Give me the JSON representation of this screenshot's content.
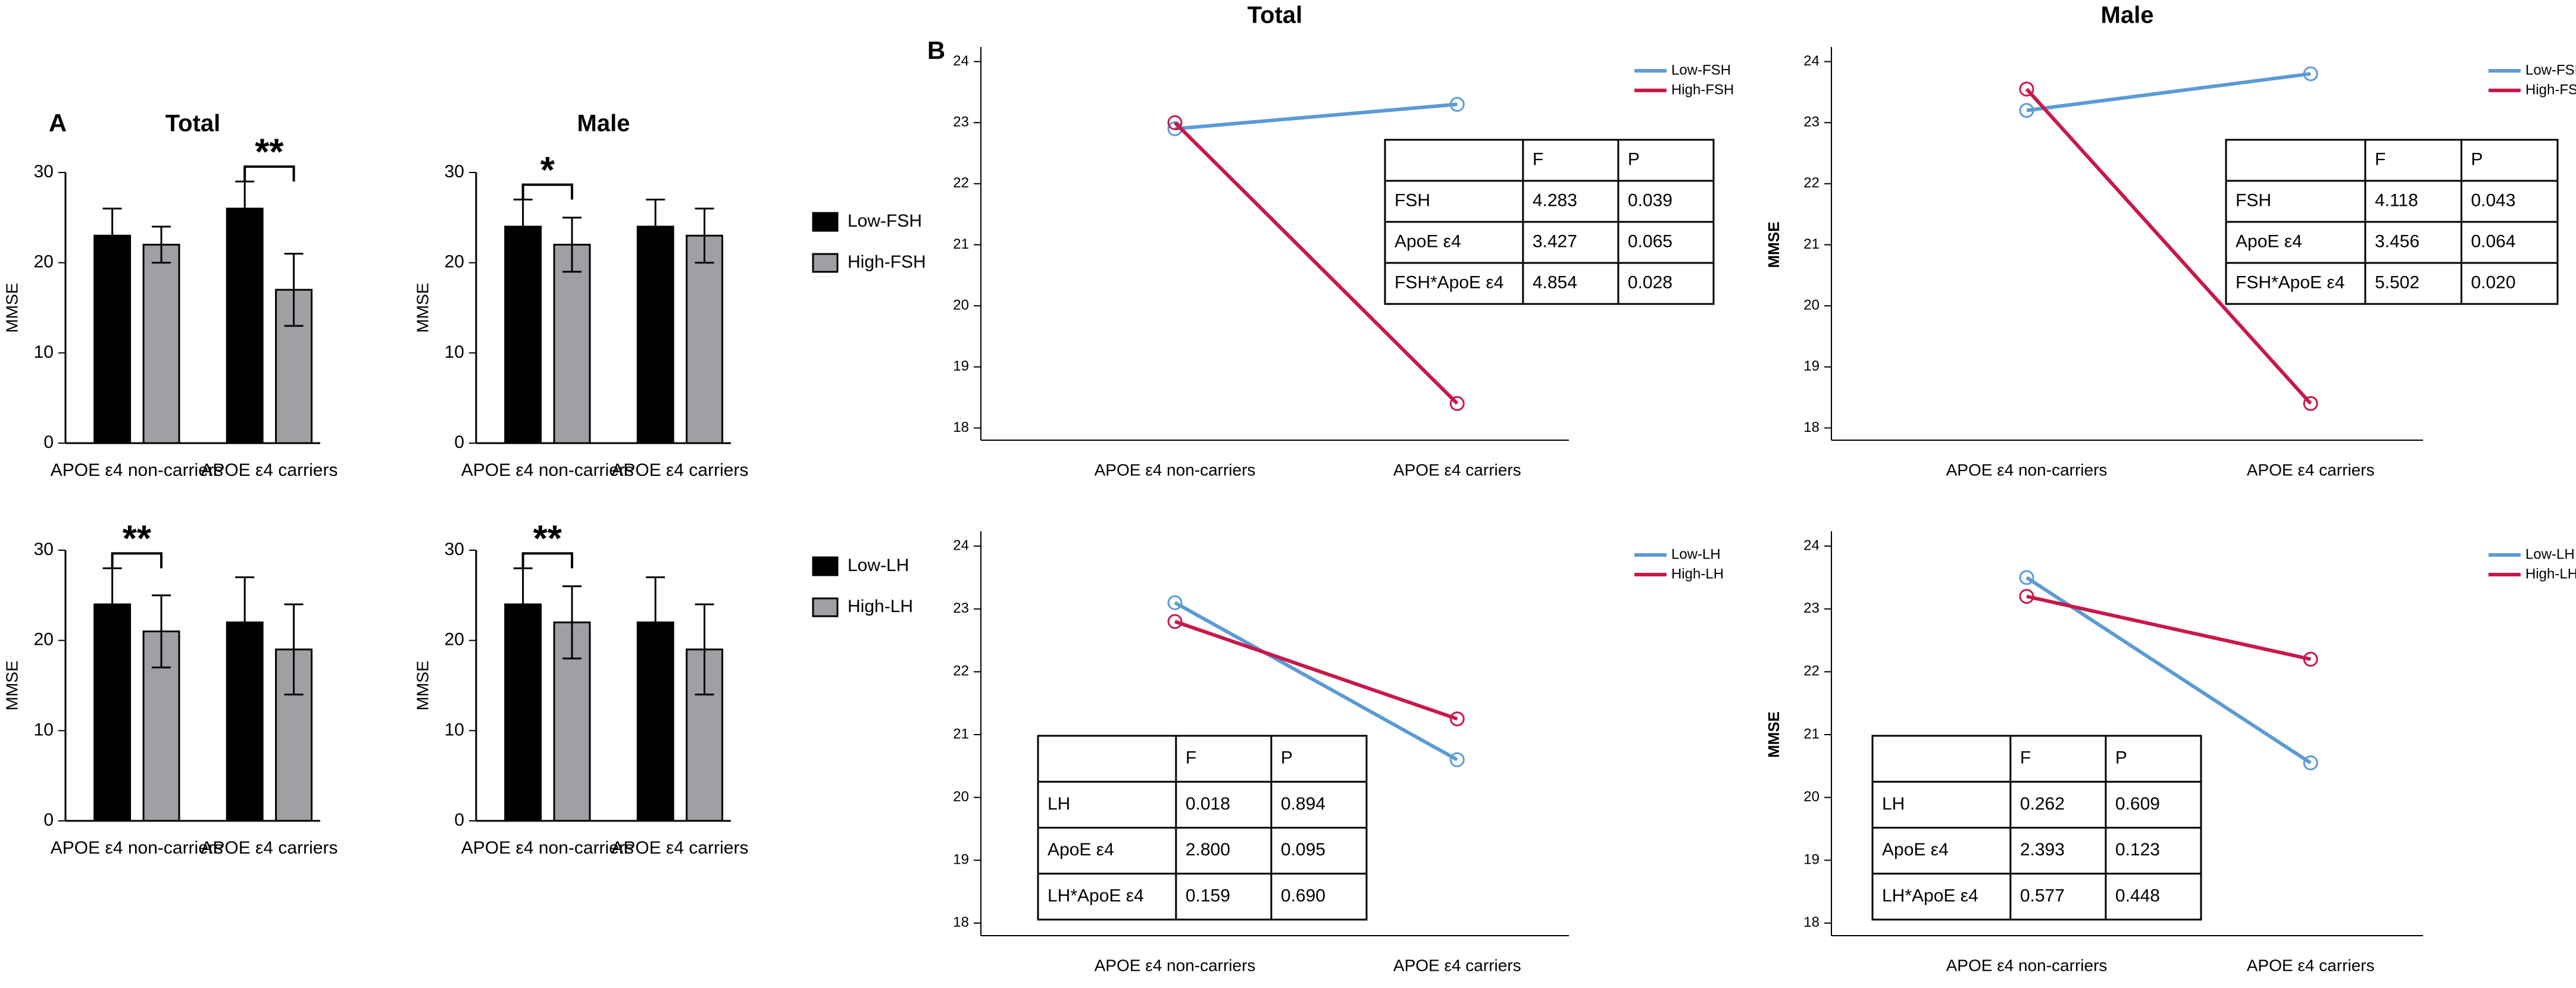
{
  "chart_data": [
    {
      "type": "bar",
      "panel": "A",
      "title": "Total",
      "ylabel": "MMSE",
      "categories": [
        "APOE ε4 non-carriers",
        "APOE ε4 carriers"
      ],
      "series": [
        {
          "color": "#000000",
          "values": [
            23,
            26
          ],
          "errors": [
            3,
            3
          ]
        },
        {
          "color": "#a0a0a4",
          "values": [
            22,
            17
          ],
          "errors": [
            2,
            4
          ]
        }
      ],
      "significance": [
        null,
        "**"
      ],
      "ylim": [
        0,
        30
      ],
      "yticks": [
        0,
        10,
        20,
        30
      ]
    },
    {
      "type": "bar",
      "title": "Male",
      "ylabel": "MMSE",
      "categories": [
        "APOE ε4 non-carriers",
        "APOE ε4 carriers"
      ],
      "series": [
        {
          "name": "Low-FSH",
          "color": "#000000",
          "values": [
            24,
            24
          ],
          "errors": [
            3,
            3
          ]
        },
        {
          "name": "High-FSH",
          "color": "#a0a0a4",
          "values": [
            22,
            23
          ],
          "errors": [
            3,
            3
          ]
        }
      ],
      "significance": [
        "*",
        null
      ],
      "ylim": [
        0,
        30
      ],
      "yticks": [
        0,
        10,
        20,
        30
      ],
      "legend": "right"
    },
    {
      "type": "bar",
      "ylabel": "MMSE",
      "categories": [
        "APOE ε4 non-carriers",
        "APOE ε4 carriers"
      ],
      "series": [
        {
          "color": "#000000",
          "values": [
            24,
            22
          ],
          "errors": [
            4,
            5
          ]
        },
        {
          "color": "#a0a0a4",
          "values": [
            21,
            19
          ],
          "errors": [
            4,
            5
          ]
        }
      ],
      "significance": [
        "**",
        null
      ],
      "ylim": [
        0,
        30
      ],
      "yticks": [
        0,
        10,
        20,
        30
      ]
    },
    {
      "type": "bar",
      "ylabel": "MMSE",
      "categories": [
        "APOE ε4 non-carriers",
        "APOE ε4 carriers"
      ],
      "series": [
        {
          "name": "Low-LH",
          "color": "#000000",
          "values": [
            24,
            22
          ],
          "errors": [
            4,
            5
          ]
        },
        {
          "name": "High-LH",
          "color": "#a0a0a4",
          "values": [
            22,
            19
          ],
          "errors": [
            4,
            5
          ]
        }
      ],
      "significance": [
        "**",
        null
      ],
      "ylim": [
        0,
        30
      ],
      "yticks": [
        0,
        10,
        20,
        30
      ],
      "legend": "right"
    },
    {
      "type": "line",
      "panel": "B",
      "title": "Total",
      "categories": [
        "APOE ε4 non-carriers",
        "APOE ε4 carriers"
      ],
      "series": [
        {
          "name": "Low-FSH",
          "color": "#5b9bd5",
          "values": [
            22.9,
            23.3
          ]
        },
        {
          "name": "High-FSH",
          "color": "#c8184a",
          "values": [
            23.0,
            18.4
          ]
        }
      ],
      "ylim": [
        17.8,
        24.2
      ],
      "yticks": [
        18,
        19,
        20,
        21,
        22,
        23,
        24
      ],
      "legend": "top-right",
      "table": {
        "columns": [
          "F",
          "P"
        ],
        "rows": [
          [
            "FSH",
            "4.283",
            "0.039"
          ],
          [
            "ApoE ε4",
            "3.427",
            "0.065"
          ],
          [
            "FSH*ApoE ε4",
            "4.854",
            "0.028"
          ]
        ]
      }
    },
    {
      "type": "line",
      "title": "Male",
      "ylabel": "MMSE",
      "categories": [
        "APOE ε4 non-carriers",
        "APOE ε4 carriers"
      ],
      "series": [
        {
          "name": "Low-FSH",
          "color": "#5b9bd5",
          "values": [
            23.2,
            23.8
          ]
        },
        {
          "name": "High-FSH",
          "color": "#c8184a",
          "values": [
            23.55,
            18.4
          ]
        }
      ],
      "ylim": [
        17.8,
        24.2
      ],
      "yticks": [
        18,
        19,
        20,
        21,
        22,
        23,
        24
      ],
      "legend": "top-right",
      "table": {
        "columns": [
          "F",
          "P"
        ],
        "rows": [
          [
            "FSH",
            "4.118",
            "0.043"
          ],
          [
            "ApoE ε4",
            "3.456",
            "0.064"
          ],
          [
            "FSH*ApoE ε4",
            "5.502",
            "0.020"
          ]
        ]
      }
    },
    {
      "type": "line",
      "categories": [
        "APOE ε4 non-carriers",
        "APOE ε4 carriers"
      ],
      "series": [
        {
          "name": "Low-LH",
          "color": "#5b9bd5",
          "values": [
            23.1,
            20.6
          ]
        },
        {
          "name": "High-LH",
          "color": "#c8184a",
          "values": [
            22.8,
            21.25
          ]
        }
      ],
      "ylim": [
        17.8,
        24.2
      ],
      "yticks": [
        18,
        19,
        20,
        21,
        22,
        23,
        24
      ],
      "legend": "top-right",
      "table": {
        "columns": [
          "F",
          "P"
        ],
        "rows": [
          [
            "LH",
            "0.018",
            "0.894"
          ],
          [
            "ApoE ε4",
            "2.800",
            "0.095"
          ],
          [
            "LH*ApoE ε4",
            "0.159",
            "0.690"
          ]
        ]
      }
    },
    {
      "type": "line",
      "ylabel": "MMSE",
      "categories": [
        "APOE ε4 non-carriers",
        "APOE ε4 carriers"
      ],
      "series": [
        {
          "name": "Low-LH",
          "color": "#5b9bd5",
          "values": [
            23.5,
            20.55
          ]
        },
        {
          "name": "High-LH",
          "color": "#c8184a",
          "values": [
            23.2,
            22.2
          ]
        }
      ],
      "ylim": [
        17.8,
        24.2
      ],
      "yticks": [
        18,
        19,
        20,
        21,
        22,
        23,
        24
      ],
      "legend": "top-right",
      "table": {
        "columns": [
          "F",
          "P"
        ],
        "rows": [
          [
            "LH",
            "0.262",
            "0.609"
          ],
          [
            "ApoE ε4",
            "2.393",
            "0.123"
          ],
          [
            "LH*ApoE ε4",
            "0.577",
            "0.448"
          ]
        ]
      }
    }
  ]
}
